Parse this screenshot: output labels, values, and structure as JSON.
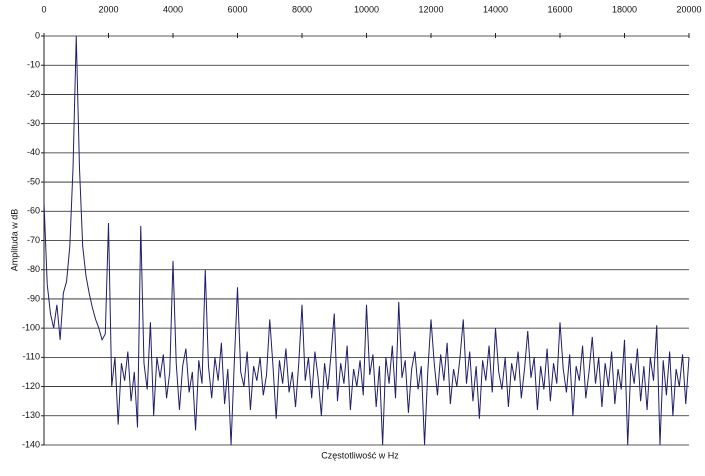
{
  "chart_data": {
    "type": "line",
    "xlabel": "Częstotliwość w Hz",
    "ylabel": "Amplituda w dB",
    "xlim": [
      0,
      20000
    ],
    "xticks": [
      0,
      2000,
      4000,
      6000,
      8000,
      10000,
      12000,
      14000,
      16000,
      18000,
      20000
    ],
    "ylim": [
      -140,
      0
    ],
    "yticks": [
      0,
      -10,
      -20,
      -30,
      -40,
      -50,
      -60,
      -70,
      -80,
      -90,
      -100,
      -110,
      -120,
      -130,
      -140
    ],
    "grid": true,
    "color": "#1f1f6b",
    "x": [
      0,
      100,
      200,
      300,
      400,
      500,
      600,
      700,
      800,
      900,
      1000,
      1100,
      1200,
      1300,
      1400,
      1500,
      1600,
      1700,
      1800,
      1900,
      2000,
      2100,
      2200,
      2300,
      2400,
      2500,
      2600,
      2700,
      2800,
      2900,
      3000,
      3100,
      3200,
      3300,
      3400,
      3500,
      3600,
      3700,
      3800,
      3900,
      4000,
      4100,
      4200,
      4300,
      4400,
      4500,
      4600,
      4700,
      4800,
      4900,
      5000,
      5100,
      5200,
      5300,
      5400,
      5500,
      5600,
      5700,
      5800,
      5900,
      6000,
      6100,
      6200,
      6300,
      6400,
      6500,
      6600,
      6700,
      6800,
      6900,
      7000,
      7100,
      7200,
      7300,
      7400,
      7500,
      7600,
      7700,
      7800,
      7900,
      8000,
      8100,
      8200,
      8300,
      8400,
      8500,
      8600,
      8700,
      8800,
      8900,
      9000,
      9100,
      9200,
      9300,
      9400,
      9500,
      9600,
      9700,
      9800,
      9900,
      10000,
      10100,
      10200,
      10300,
      10400,
      10500,
      10600,
      10700,
      10800,
      10900,
      11000,
      11100,
      11200,
      11300,
      11400,
      11500,
      11600,
      11700,
      11800,
      11900,
      12000,
      12100,
      12200,
      12300,
      12400,
      12500,
      12600,
      12700,
      12800,
      12900,
      13000,
      13100,
      13200,
      13300,
      13400,
      13500,
      13600,
      13700,
      13800,
      13900,
      14000,
      14100,
      14200,
      14300,
      14400,
      14500,
      14600,
      14700,
      14800,
      14900,
      15000,
      15100,
      15200,
      15300,
      15400,
      15500,
      15600,
      15700,
      15800,
      15900,
      16000,
      16100,
      16200,
      16300,
      16400,
      16500,
      16600,
      16700,
      16800,
      16900,
      17000,
      17100,
      17200,
      17300,
      17400,
      17500,
      17600,
      17700,
      17800,
      17900,
      18000,
      18100,
      18200,
      18300,
      18400,
      18500,
      18600,
      18700,
      18800,
      18900,
      19000,
      19100,
      19200,
      19300,
      19400,
      19500,
      19600,
      19700,
      19800,
      19900,
      20000
    ],
    "values": [
      -57,
      -85,
      -95,
      -100,
      -92,
      -104,
      -88,
      -84,
      -72,
      -45,
      0,
      -45,
      -72,
      -82,
      -88,
      -93,
      -97,
      -100,
      -104,
      -102,
      -64,
      -120,
      -110,
      -133,
      -112,
      -118,
      -108,
      -125,
      -115,
      -134,
      -65,
      -112,
      -121,
      -98,
      -130,
      -110,
      -117,
      -109,
      -124,
      -115,
      -77,
      -112,
      -128,
      -113,
      -107,
      -122,
      -115,
      -135,
      -111,
      -119,
      -80,
      -113,
      -124,
      -110,
      -118,
      -105,
      -126,
      -114,
      -140,
      -112,
      -86,
      -115,
      -120,
      -108,
      -128,
      -113,
      -118,
      -110,
      -123,
      -116,
      -97,
      -113,
      -131,
      -111,
      -119,
      -107,
      -122,
      -115,
      -127,
      -112,
      -92,
      -118,
      -110,
      -124,
      -108,
      -117,
      -130,
      -112,
      -121,
      -109,
      -95,
      -125,
      -112,
      -119,
      -106,
      -128,
      -114,
      -120,
      -111,
      -123,
      -92,
      -116,
      -109,
      -127,
      -113,
      -140,
      -110,
      -119,
      -106,
      -124,
      -91,
      -117,
      -111,
      -129,
      -114,
      -108,
      -121,
      -113,
      -140,
      -115,
      -97,
      -112,
      -123,
      -109,
      -118,
      -105,
      -126,
      -114,
      -120,
      -110,
      -97,
      -119,
      -108,
      -125,
      -113,
      -131,
      -111,
      -118,
      -106,
      -122,
      -100,
      -115,
      -121,
      -110,
      -127,
      -112,
      -118,
      -108,
      -124,
      -114,
      -101,
      -117,
      -110,
      -128,
      -113,
      -121,
      -107,
      -125,
      -112,
      -119,
      -98,
      -114,
      -122,
      -109,
      -130,
      -113,
      -118,
      -106,
      -124,
      -115,
      -103,
      -119,
      -110,
      -127,
      -112,
      -120,
      -108,
      -126,
      -114,
      -121,
      -104,
      -140,
      -112,
      -119,
      -107,
      -125,
      -113,
      -128,
      -110,
      -118,
      -99,
      -140,
      -111,
      -123,
      -108,
      -130,
      -114,
      -120,
      -109,
      -126,
      -110
    ]
  }
}
